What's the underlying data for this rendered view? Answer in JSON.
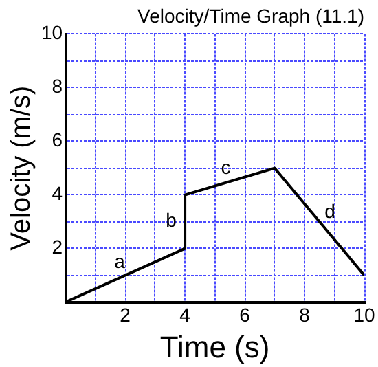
{
  "chart_data": {
    "type": "line",
    "title": "Velocity/Time Graph (11.1)",
    "xlabel": "Time (s)",
    "ylabel": "Velocity (m/s)",
    "x": [
      0,
      4,
      4,
      7,
      10
    ],
    "series": [
      {
        "color": "#000000",
        "values": [
          0,
          2,
          4,
          5,
          1
        ]
      }
    ],
    "xlim": [
      0,
      10
    ],
    "ylim": [
      0,
      10
    ],
    "xticks": [
      {
        "value": 0,
        "label": null
      },
      {
        "value": 1,
        "label": null
      },
      2,
      {
        "value": 3,
        "label": null
      },
      4,
      {
        "value": 5,
        "label": null
      },
      6,
      {
        "value": 7,
        "label": null
      },
      8,
      {
        "value": 9,
        "label": null
      },
      10
    ],
    "yticks": [
      {
        "value": 0,
        "label": null
      },
      {
        "value": 1,
        "label": null
      },
      2,
      {
        "value": 3,
        "label": null
      },
      4,
      {
        "value": 5,
        "label": null
      },
      6,
      {
        "value": 7,
        "label": null
      },
      8,
      {
        "value": 9,
        "label": null
      },
      10
    ],
    "grid": true,
    "legend": false,
    "marker": "none",
    "line_style": "solid",
    "annotations": [
      "a",
      "b",
      "c",
      "d"
    ]
  }
}
